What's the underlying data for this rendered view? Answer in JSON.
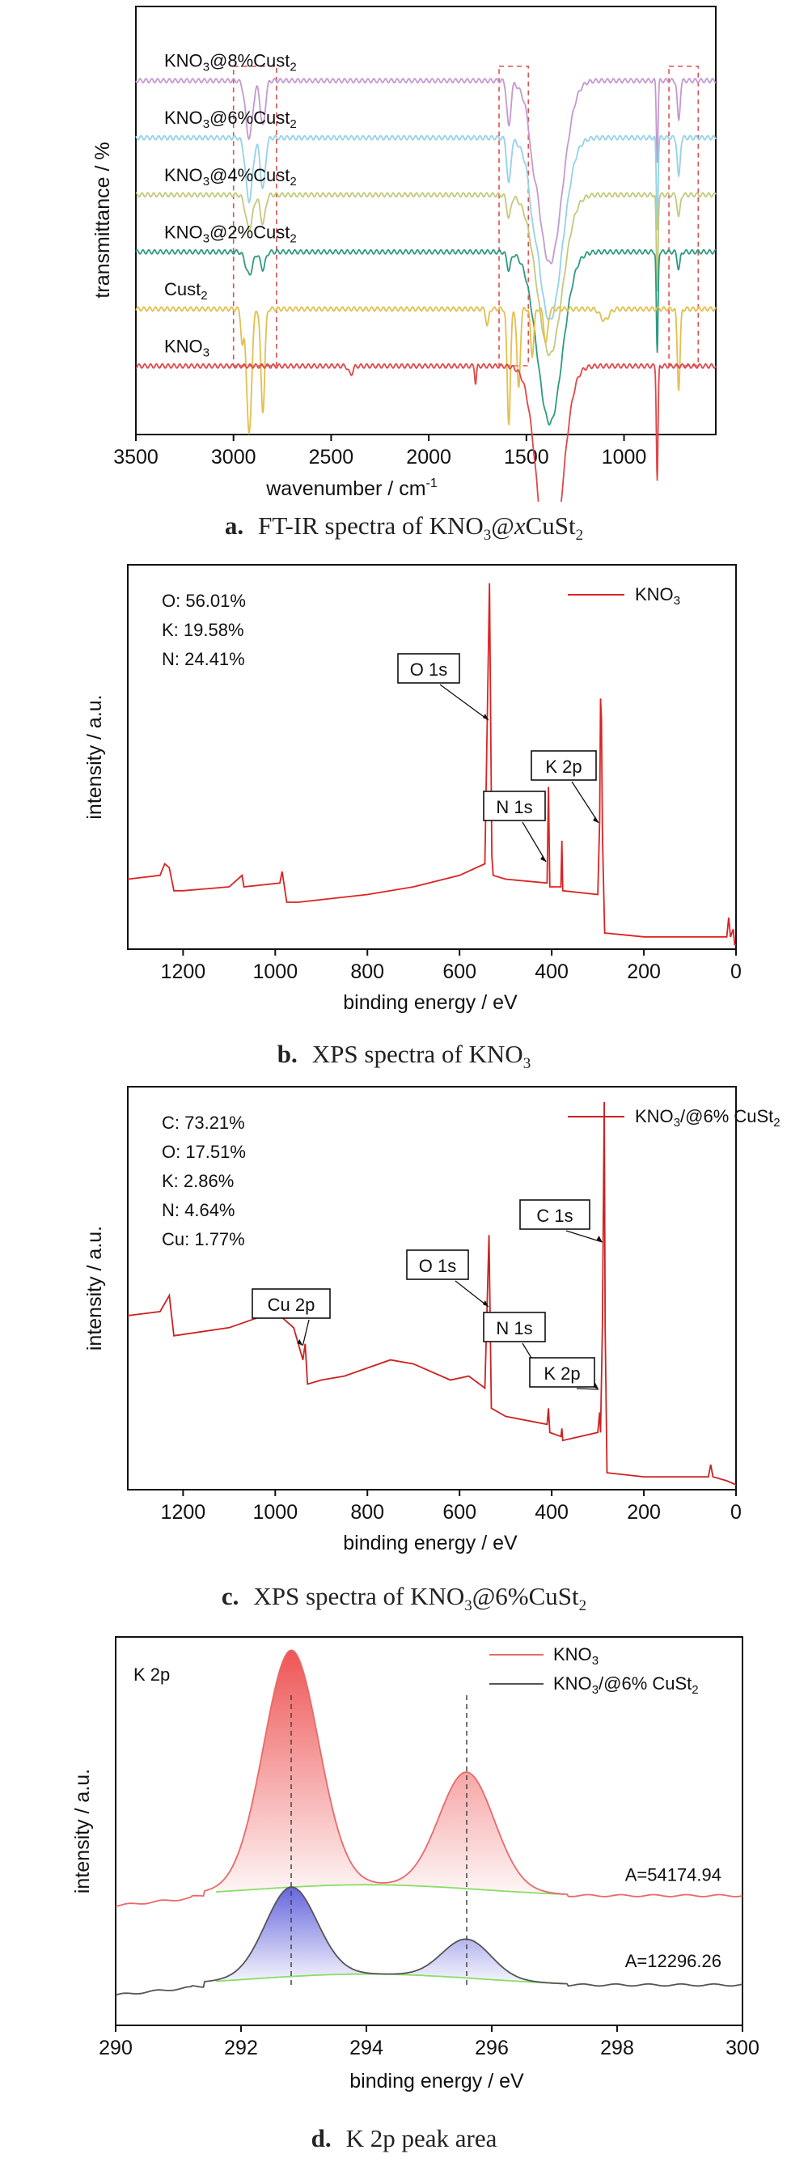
{
  "figure": {
    "captions": [
      {
        "letter": "a.",
        "text_html": "FT-IR spectra of KNO<sub>3</sub>@<i>x</i>CuSt<sub>2</sub>"
      },
      {
        "letter": "b.",
        "text_html": "XPS spectra of KNO<sub>3</sub>"
      },
      {
        "letter": "c.",
        "text_html": "XPS spectra of KNO<sub>3</sub>@6%CuSt<sub>2</sub>"
      },
      {
        "letter": "d.",
        "text_html": "K 2p peak area"
      }
    ]
  },
  "chart_data": [
    {
      "id": "a",
      "type": "line",
      "xlabel": "wavenumber / cm",
      "xlabel_sup": "-1",
      "ylabel": "transmittance / %",
      "xlim": [
        3500,
        530
      ],
      "x_ticks": [
        3500,
        3000,
        2500,
        2000,
        1500,
        1000
      ],
      "y_ticks_shown": false,
      "series": [
        {
          "name": "KNO3@8%Cust2",
          "name_parts": [
            "KNO",
            "3",
            "@8%Cust",
            "2"
          ],
          "color": "#c39ad0",
          "baseline": 62,
          "features": [
            [
              2920,
              -10,
              25
            ],
            [
              2850,
              -8,
              18
            ],
            [
              1590,
              -8,
              14
            ],
            [
              1470,
              -3,
              18
            ],
            [
              1380,
              -32,
              90
            ],
            [
              830,
              -14,
              6
            ],
            [
              720,
              -7,
              10
            ]
          ]
        },
        {
          "name": "KNO3@6%Cust2",
          "name_parts": [
            "KNO",
            "3",
            "@6%Cust",
            "2"
          ],
          "color": "#94d2e8",
          "baseline": 52,
          "features": [
            [
              2920,
              -11,
              25
            ],
            [
              2850,
              -9,
              18
            ],
            [
              1590,
              -8,
              14
            ],
            [
              1470,
              -3,
              18
            ],
            [
              1380,
              -32,
              90
            ],
            [
              830,
              -16,
              6
            ],
            [
              720,
              -7,
              10
            ]
          ]
        },
        {
          "name": "KNO3@4%Cust2",
          "name_parts": [
            "KNO",
            "3",
            "@4%Cust",
            "2"
          ],
          "color": "#c2c97a",
          "baseline": 42,
          "features": [
            [
              2920,
              -6,
              25
            ],
            [
              2850,
              -5,
              18
            ],
            [
              1590,
              -4,
              14
            ],
            [
              1380,
              -28,
              90
            ],
            [
              830,
              -17,
              6
            ],
            [
              720,
              -4,
              10
            ]
          ]
        },
        {
          "name": "KNO3@2%Cust2",
          "name_parts": [
            "KNO",
            "3",
            "@2%Cust",
            "2"
          ],
          "color": "#2e9a82",
          "baseline": 32,
          "features": [
            [
              2920,
              -4,
              25
            ],
            [
              2850,
              -3,
              18
            ],
            [
              1590,
              -3,
              14
            ],
            [
              1380,
              -30,
              90
            ],
            [
              830,
              -18,
              6
            ],
            [
              720,
              -3,
              10
            ]
          ]
        },
        {
          "name": "Cust2",
          "name_parts": [
            "Cust",
            "2",
            "",
            ""
          ],
          "color": "#e3bf4f",
          "baseline": 22,
          "features": [
            [
              2955,
              -6,
              10
            ],
            [
              2920,
              -22,
              18
            ],
            [
              2850,
              -18,
              14
            ],
            [
              1700,
              -3,
              10
            ],
            [
              1590,
              -20,
              12
            ],
            [
              1540,
              -14,
              12
            ],
            [
              1470,
              -8,
              12
            ],
            [
              1400,
              -6,
              14
            ],
            [
              1100,
              -2,
              30
            ],
            [
              720,
              -14,
              10
            ]
          ]
        },
        {
          "name": "KNO3",
          "name_parts": [
            "KNO",
            "3",
            "",
            ""
          ],
          "color": "#e0474a",
          "baseline": 12,
          "features": [
            [
              2400,
              -1.5,
              15
            ],
            [
              1760,
              -3,
              6
            ],
            [
              1380,
              -38,
              85
            ],
            [
              830,
              -20,
              6
            ]
          ]
        }
      ],
      "highlight_boxes_cm": [
        [
          3000,
          2780
        ],
        [
          1640,
          1490
        ],
        [
          770,
          620
        ]
      ]
    },
    {
      "id": "b",
      "type": "line",
      "xlabel": "binding energy / eV",
      "ylabel": "intensity / a.u.",
      "xlim": [
        1320,
        0
      ],
      "x_ticks": [
        1200,
        1000,
        800,
        600,
        400,
        200,
        0
      ],
      "legend": {
        "name": "KNO3",
        "name_parts": [
          "KNO",
          "3",
          "",
          ""
        ],
        "color": "#dd2222",
        "position": "top-right"
      },
      "composition": [
        "O: 56.01%",
        "K: 19.58%",
        "N: 24.41%"
      ],
      "peak_labels": [
        {
          "text": "O 1s",
          "be": 532
        },
        {
          "text": "N 1s",
          "be": 407
        },
        {
          "text": "K 2p",
          "be": 293
        }
      ],
      "profile": [
        [
          1320,
          18
        ],
        [
          1250,
          19
        ],
        [
          1240,
          22
        ],
        [
          1230,
          21
        ],
        [
          1220,
          15
        ],
        [
          1200,
          15
        ],
        [
          1100,
          16
        ],
        [
          1072,
          19
        ],
        [
          1068,
          16
        ],
        [
          990,
          17
        ],
        [
          985,
          20
        ],
        [
          975,
          12
        ],
        [
          950,
          12
        ],
        [
          800,
          14
        ],
        [
          700,
          16
        ],
        [
          600,
          19
        ],
        [
          545,
          22
        ],
        [
          535,
          95
        ],
        [
          530,
          24
        ],
        [
          527,
          19
        ],
        [
          500,
          18
        ],
        [
          410,
          17
        ],
        [
          407,
          42
        ],
        [
          404,
          16
        ],
        [
          380,
          16
        ],
        [
          378,
          28
        ],
        [
          376,
          15
        ],
        [
          300,
          14
        ],
        [
          296,
          33
        ],
        [
          294,
          65
        ],
        [
          292,
          60
        ],
        [
          290,
          30
        ],
        [
          285,
          4
        ],
        [
          200,
          3
        ],
        [
          100,
          3
        ],
        [
          20,
          3
        ],
        [
          16,
          8
        ],
        [
          12,
          3
        ],
        [
          6,
          5
        ],
        [
          3,
          1
        ],
        [
          0,
          1
        ]
      ]
    },
    {
      "id": "c",
      "type": "line",
      "xlabel": "binding energy / eV",
      "ylabel": "intensity / a.u.",
      "xlim": [
        1320,
        0
      ],
      "x_ticks": [
        1200,
        1000,
        800,
        600,
        400,
        200,
        0
      ],
      "legend": {
        "name": "KNO3/@6% CuSt2",
        "name_parts": [
          "KNO",
          "3",
          "/@6% CuSt",
          "2"
        ],
        "color": "#cc2222",
        "position": "top-right"
      },
      "composition": [
        "C: 73.21%",
        "O: 17.51%",
        "K: 2.86%",
        "N: 4.64%",
        "Cu: 1.77%"
      ],
      "peak_labels": [
        {
          "text": "Cu 2p",
          "be": 935
        },
        {
          "text": "O 1s",
          "be": 532
        },
        {
          "text": "N 1s",
          "be": 407
        },
        {
          "text": "K 2p",
          "be": 293
        },
        {
          "text": "C 1s",
          "be": 285
        }
      ],
      "profile": [
        [
          1320,
          43
        ],
        [
          1250,
          44
        ],
        [
          1230,
          48
        ],
        [
          1220,
          38
        ],
        [
          1100,
          40
        ],
        [
          1000,
          44
        ],
        [
          960,
          40
        ],
        [
          950,
          36
        ],
        [
          940,
          32
        ],
        [
          935,
          36
        ],
        [
          930,
          26
        ],
        [
          900,
          27
        ],
        [
          850,
          28
        ],
        [
          750,
          32
        ],
        [
          700,
          31
        ],
        [
          620,
          27
        ],
        [
          580,
          28
        ],
        [
          545,
          25
        ],
        [
          536,
          63
        ],
        [
          531,
          20
        ],
        [
          500,
          18
        ],
        [
          410,
          16
        ],
        [
          407,
          20
        ],
        [
          404,
          14
        ],
        [
          380,
          13
        ],
        [
          378,
          15
        ],
        [
          376,
          12
        ],
        [
          300,
          14
        ],
        [
          296,
          19
        ],
        [
          294,
          14
        ],
        [
          290,
          40
        ],
        [
          286,
          96
        ],
        [
          284,
          40
        ],
        [
          280,
          4
        ],
        [
          200,
          3
        ],
        [
          100,
          3
        ],
        [
          60,
          3
        ],
        [
          55,
          6
        ],
        [
          50,
          3
        ],
        [
          20,
          2
        ],
        [
          0,
          1
        ]
      ]
    },
    {
      "id": "d",
      "type": "line",
      "xlabel": "binding energy / eV",
      "ylabel": "intensity / a.u.",
      "xlim": [
        290,
        300
      ],
      "x_ticks": [
        290,
        292,
        294,
        296,
        298,
        300
      ],
      "corner_label": "K 2p",
      "legend_position": "top-right",
      "series": [
        {
          "name": "KNO3",
          "name_parts": [
            "KNO",
            "3",
            "",
            ""
          ],
          "color": "#e86a6a",
          "fill": "#ee5555",
          "baseline": 33,
          "area_label": "A=54174.94",
          "area_color": "#dd2222",
          "peaks": [
            [
              292.8,
              61,
              0.62
            ],
            [
              295.6,
              30,
              0.62
            ]
          ]
        },
        {
          "name": "KNO3/@6% CuSt2",
          "name_parts": [
            "KNO",
            "3",
            "/@6% CuSt",
            "2"
          ],
          "color": "#555555",
          "fill": "#6666dd",
          "baseline": 10,
          "area_label": "A=12296.26",
          "area_color": "#111111",
          "peaks": [
            [
              292.8,
              23,
              0.58
            ],
            [
              295.6,
              10,
              0.55
            ]
          ]
        }
      ],
      "peak_marker_lines": [
        292.8,
        295.6
      ],
      "background_color": "#88dd66"
    }
  ]
}
